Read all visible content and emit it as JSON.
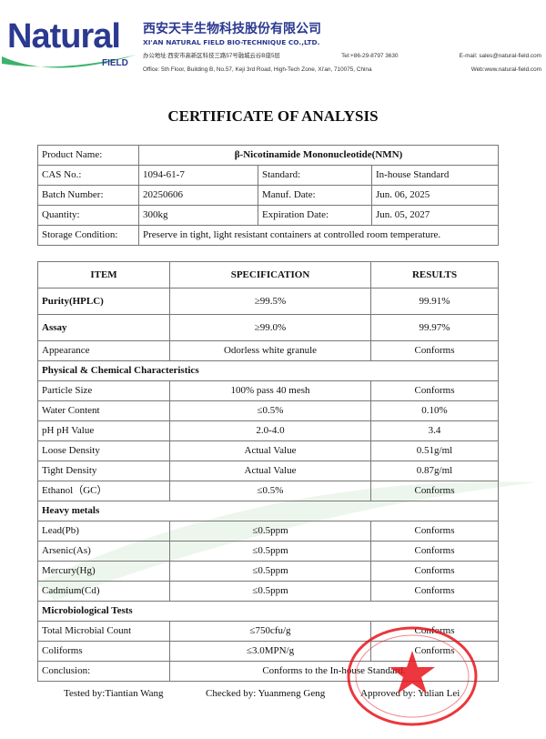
{
  "company": {
    "logo_text": "Natural",
    "logo_sub": "FIELD",
    "name_cn": "西安天丰生物科技股份有限公司",
    "name_en": "XI'AN NATURAL FIELD BIO-TECHNIQUE CO.,LTD.",
    "address_cn": "办公地址:西安市高新区科技三路57号融城云谷B座5层",
    "tel": "Tel:+86-29-8797 3630",
    "email": "E-mail: sales@natural-field.com",
    "address_en": "Office: 5th Floor, Building B, No.57, Keji 3rd Road, High-Tech Zone, Xi'an, 710075, China",
    "web": "Web:www.natural-field.com",
    "brand_blue": "#2b3990",
    "brand_green": "#3cb36b"
  },
  "title": "CERTIFICATE OF ANALYSIS",
  "info": {
    "product_label": "Product Name:",
    "product": "β-Nicotinamide Mononucleotide(NMN)",
    "cas_label": "CAS No.:",
    "cas": "1094-61-7",
    "standard_label": "Standard:",
    "standard": "In-house Standard",
    "batch_label": "Batch Number:",
    "batch": "20250606",
    "manuf_label": "Manuf. Date:",
    "manuf": "Jun. 06, 2025",
    "qty_label": "Quantity:",
    "qty": "300kg",
    "exp_label": "Expiration Date:",
    "exp": "Jun. 05, 2027",
    "storage_label": "Storage Condition:",
    "storage": "Preserve in tight, light resistant containers at controlled room temperature."
  },
  "results": {
    "headers": [
      "ITEM",
      "SPECIFICATION",
      "RESULTS"
    ],
    "rows": [
      {
        "item": "Purity(HPLC)",
        "spec": "≥99.5%",
        "result": "99.91%",
        "bold": true
      },
      {
        "item": "Assay",
        "spec": "≥99.0%",
        "result": "99.97%",
        "bold": true
      },
      {
        "item": "Appearance",
        "spec": "Odorless white granule",
        "result": "Conforms"
      },
      {
        "section": "Physical & Chemical Characteristics"
      },
      {
        "item": "Particle Size",
        "spec": "100% pass 40 mesh",
        "result": "Conforms"
      },
      {
        "item": "Water Content",
        "spec": "≤0.5%",
        "result": "0.10%"
      },
      {
        "item": "pH pH Value",
        "spec": "2.0-4.0",
        "result": "3.4"
      },
      {
        "item": "Loose Density",
        "spec": "Actual Value",
        "result": "0.51g/ml"
      },
      {
        "item": "Tight Density",
        "spec": "Actual Value",
        "result": "0.87g/ml"
      },
      {
        "item": "Ethanol（GC）",
        "spec": "≤0.5%",
        "result": "Conforms"
      },
      {
        "section": "Heavy metals"
      },
      {
        "item": "Lead(Pb)",
        "spec": "≤0.5ppm",
        "result": "Conforms"
      },
      {
        "item": "Arsenic(As)",
        "spec": "≤0.5ppm",
        "result": "Conforms"
      },
      {
        "item": "Mercury(Hg)",
        "spec": "≤0.5ppm",
        "result": "Conforms"
      },
      {
        "item": "Cadmium(Cd)",
        "spec": "≤0.5ppm",
        "result": "Conforms"
      },
      {
        "section": "Microbiological Tests"
      },
      {
        "item": "Total Microbial Count",
        "spec": "≤750cfu/g",
        "result": "Conforms"
      },
      {
        "item": "Coliforms",
        "spec": "≤3.0MPN/g",
        "result": "Conforms"
      }
    ],
    "conclusion_label": "Conclusion:",
    "conclusion": "Conforms to the In-house Standard."
  },
  "signatures": {
    "tested": "Tested by:Tiantian Wang",
    "checked": "Checked by: Yuanmeng Geng",
    "approved": "Approved by: Yulian Lei"
  },
  "stamp": {
    "text": "Xi'an Natural Field Bio-technique Company Limited",
    "bottom": "Inspection",
    "color": "#e8141b"
  }
}
